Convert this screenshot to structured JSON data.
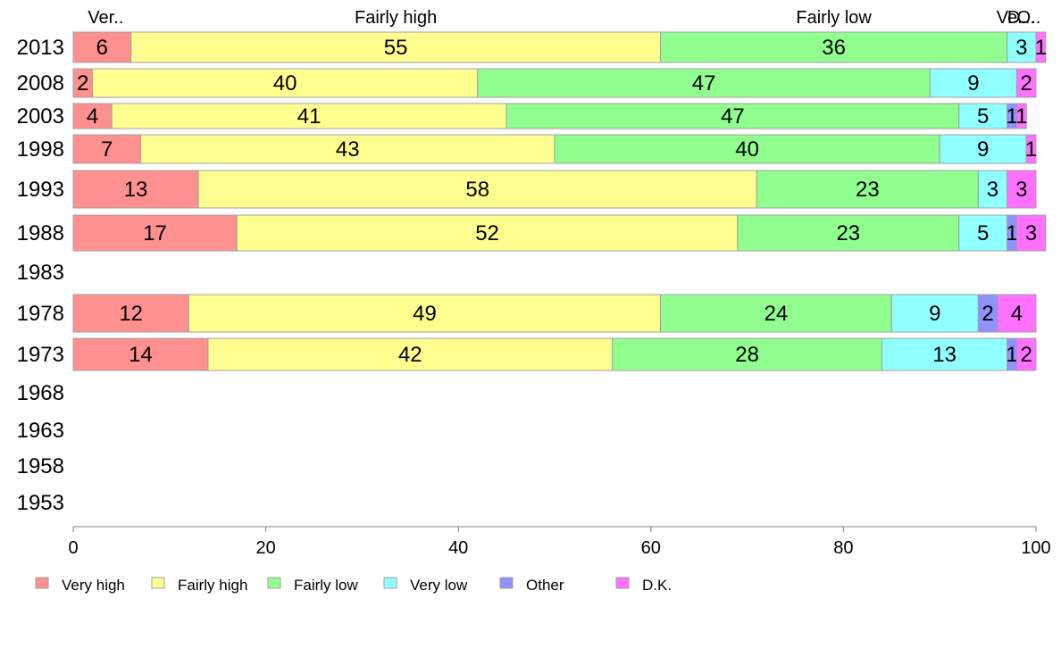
{
  "chart_data": {
    "type": "bar",
    "orientation": "horizontal",
    "stacked": true,
    "categories": [
      "2013",
      "2008",
      "2003",
      "1998",
      "1993",
      "1988",
      "1983",
      "1978",
      "1973",
      "1968",
      "1963",
      "1958",
      "1953"
    ],
    "series": [
      {
        "name": "Very high",
        "color": "#ff9090",
        "values": [
          6,
          2,
          4,
          7,
          13,
          17,
          null,
          12,
          14,
          null,
          null,
          null,
          null
        ]
      },
      {
        "name": "Fairly high",
        "color": "#ffff90",
        "values": [
          55,
          40,
          41,
          43,
          58,
          52,
          null,
          49,
          42,
          null,
          null,
          null,
          null
        ]
      },
      {
        "name": "Fairly low",
        "color": "#90ff90",
        "values": [
          36,
          47,
          47,
          40,
          23,
          23,
          null,
          24,
          28,
          null,
          null,
          null,
          null
        ]
      },
      {
        "name": "Very low",
        "color": "#90ffff",
        "values": [
          3,
          9,
          5,
          9,
          3,
          5,
          null,
          9,
          13,
          null,
          null,
          null,
          null
        ]
      },
      {
        "name": "Other",
        "color": "#9090ff",
        "values": [
          0,
          0,
          1,
          0,
          0,
          1,
          null,
          2,
          1,
          null,
          null,
          null,
          null
        ]
      },
      {
        "name": "D.K.",
        "color": "#ff70ff",
        "values": [
          1,
          2,
          1,
          1,
          3,
          3,
          null,
          4,
          2,
          null,
          null,
          null,
          null
        ]
      }
    ],
    "top_labels": [
      "Ver..",
      "Fairly high",
      "Fairly low",
      "Ve..",
      "O..",
      "D..."
    ],
    "xlim": [
      0,
      100
    ],
    "xticks": [
      0,
      20,
      40,
      60,
      80,
      100
    ],
    "legend_position": "bottom",
    "grid": false
  }
}
